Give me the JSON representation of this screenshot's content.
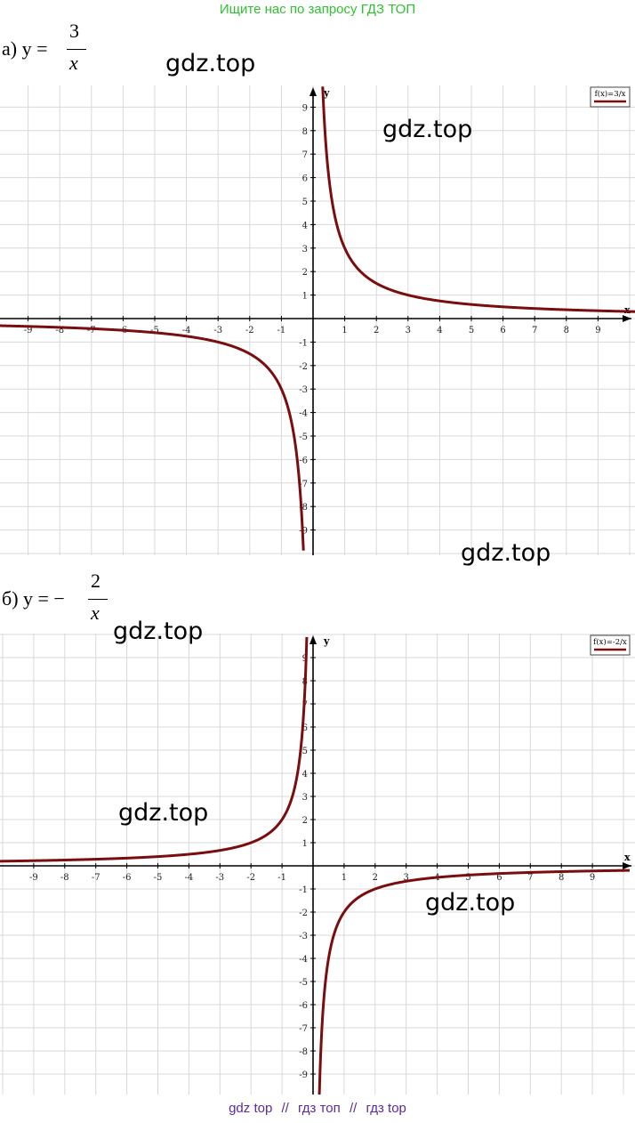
{
  "banner": "Ищите нас по запросу ГДЗ ТОП",
  "watermark": "gdz.top",
  "footer": {
    "link1": "gdz top",
    "sep": "//",
    "link2": "гдз топ",
    "link3": "гдз top"
  },
  "problems": [
    {
      "label": "а) y = ",
      "numerator": "3",
      "denominator": "x"
    },
    {
      "label": "б) y = −",
      "numerator": "2",
      "denominator": "x"
    }
  ],
  "chart_data": [
    {
      "type": "line",
      "function": "3/x",
      "legend": "f(x)=3/x",
      "legend_position": "top-right",
      "xlabel": "x",
      "ylabel": "y",
      "xlim": [
        -10,
        10
      ],
      "ylim": [
        -10,
        10
      ],
      "grid": true,
      "color": "#7a0d0d",
      "x_ticks": [
        -9,
        -8,
        -7,
        -6,
        -5,
        -4,
        -3,
        -2,
        -1,
        1,
        2,
        3,
        4,
        5,
        6,
        7,
        8,
        9
      ],
      "y_ticks": [
        9,
        8,
        7,
        6,
        5,
        4,
        3,
        2,
        1,
        -1,
        -2,
        -3,
        -4,
        -5,
        -6,
        -7,
        -8,
        -9
      ]
    },
    {
      "type": "line",
      "function": "-2/x",
      "legend": "f(x)=-2/x",
      "legend_position": "top-right",
      "xlabel": "x",
      "ylabel": "y",
      "xlim": [
        -10,
        10
      ],
      "ylim": [
        -10,
        10
      ],
      "grid": true,
      "color": "#7a0d0d",
      "x_ticks": [
        -9,
        -8,
        -7,
        -6,
        -5,
        -4,
        -3,
        -2,
        -1,
        1,
        2,
        3,
        4,
        5,
        6,
        7,
        8,
        9
      ],
      "y_ticks": [
        9,
        8,
        7,
        6,
        5,
        4,
        3,
        2,
        1,
        -1,
        -2,
        -3,
        -4,
        -5,
        -6,
        -7,
        -8,
        -9
      ]
    }
  ]
}
